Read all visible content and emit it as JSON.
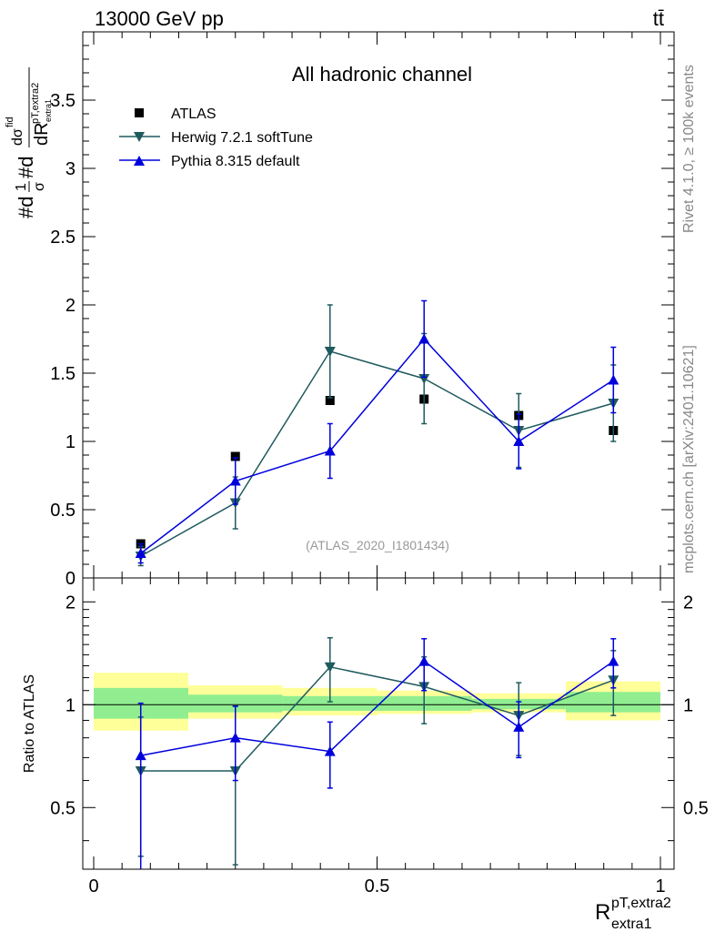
{
  "header": {
    "left": "13000 GeV pp",
    "right": "tt̄"
  },
  "side_labels": {
    "rivet": "Rivet 4.1.0, ≥ 100k events",
    "mcplots": "mcplots.cern.ch [arXiv:2401.10621]"
  },
  "colors": {
    "data": "#000000",
    "herwig": "#1f5a5e",
    "pythia": "#0000dd",
    "band_inner": "#90ee90",
    "band_outer": "#ffff99"
  },
  "chart_data": [
    {
      "type": "scatter",
      "panel": "main",
      "title": "All hadronic channel",
      "annotation": "(ATLAS_2020_I1801434)",
      "ylabel": "#d1/σ#d dσfid/dR pT,extra2 extra1",
      "xlim": [
        0,
        1
      ],
      "ylim": [
        0,
        4.0
      ],
      "yticks": [
        0,
        0.5,
        1,
        1.5,
        2,
        2.5,
        3,
        3.5
      ],
      "ytick_labels": [
        "0",
        "0.5",
        "1",
        "1.5",
        "2",
        "2.5",
        "3",
        "3.5"
      ],
      "x": [
        0.083,
        0.25,
        0.417,
        0.583,
        0.75,
        0.917
      ],
      "series": [
        {
          "name": "ATLAS",
          "marker": "square",
          "values": [
            0.25,
            0.89,
            1.3,
            1.31,
            1.19,
            1.08
          ],
          "err": [
            0.02,
            0.02,
            0.02,
            0.02,
            0.02,
            0.02
          ]
        },
        {
          "name": "Herwig 7.2.1 softTune",
          "marker": "triangle-down",
          "values": [
            0.16,
            0.55,
            1.66,
            1.46,
            1.08,
            1.28
          ],
          "err": [
            0.07,
            0.19,
            0.34,
            0.33,
            0.27,
            0.28
          ]
        },
        {
          "name": "Pythia 8.315 default",
          "marker": "triangle-up",
          "values": [
            0.18,
            0.71,
            0.93,
            1.75,
            1.0,
            1.45
          ],
          "err": [
            0.07,
            0.17,
            0.2,
            0.28,
            0.2,
            0.24
          ]
        }
      ]
    },
    {
      "type": "scatter",
      "panel": "ratio",
      "ylabel": "Ratio to ATLAS",
      "xlabel": "R pT,extra2 extra1",
      "xlim": [
        0,
        1
      ],
      "ylim": [
        0.33,
        2.35
      ],
      "yscale": "log",
      "yticks_labeled": [
        0.5,
        1,
        2
      ],
      "ytick_labels": [
        "0.5",
        "1",
        "2"
      ],
      "xticks": [
        0,
        0.5,
        1
      ],
      "xtick_labels": [
        "0",
        "0.5",
        "1"
      ],
      "x": [
        0.083,
        0.25,
        0.417,
        0.583,
        0.75,
        0.917
      ],
      "bins": [
        [
          0,
          0.167
        ],
        [
          0.167,
          0.333
        ],
        [
          0.333,
          0.5
        ],
        [
          0.5,
          0.667
        ],
        [
          0.667,
          0.833
        ],
        [
          0.833,
          1.0
        ]
      ],
      "band_inner": [
        [
          0.91,
          1.12
        ],
        [
          0.95,
          1.07
        ],
        [
          0.96,
          1.06
        ],
        [
          0.96,
          1.06
        ],
        [
          0.97,
          1.04
        ],
        [
          0.95,
          1.09
        ]
      ],
      "band_outer": [
        [
          0.84,
          1.24
        ],
        [
          0.91,
          1.14
        ],
        [
          0.93,
          1.12
        ],
        [
          0.94,
          1.1
        ],
        [
          0.95,
          1.08
        ],
        [
          0.9,
          1.17
        ]
      ],
      "series": [
        {
          "name": "Herwig 7.2.1 softTune",
          "marker": "triangle-down",
          "values": [
            0.64,
            0.64,
            1.29,
            1.13,
            0.93,
            1.18
          ],
          "err_low": [
            0.28,
            0.3,
            0.27,
            0.25,
            0.22,
            0.25
          ],
          "err_high": [
            0.28,
            0.35,
            0.28,
            0.25,
            0.23,
            0.26
          ]
        },
        {
          "name": "Pythia 8.315 default",
          "marker": "triangle-up",
          "values": [
            0.71,
            0.8,
            0.73,
            1.34,
            0.86,
            1.34
          ],
          "err_low": [
            0.38,
            0.2,
            0.16,
            0.24,
            0.16,
            0.22
          ],
          "err_high": [
            0.3,
            0.19,
            0.16,
            0.22,
            0.16,
            0.22
          ]
        }
      ]
    }
  ]
}
